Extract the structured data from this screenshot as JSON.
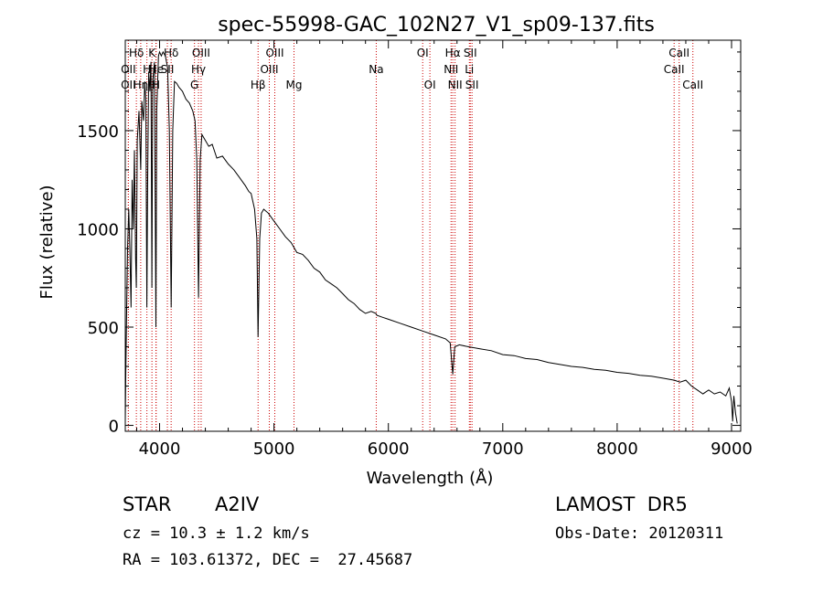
{
  "chart_data": {
    "type": "line",
    "title": "spec-55998-GAC_102N27_V1_sp09-137.fits",
    "xlabel": "Wavelength (Å)",
    "ylabel": "Flux (relative)",
    "xlim": [
      3700,
      9080
    ],
    "ylim": [
      -30,
      1960
    ],
    "xticks": [
      4000,
      5000,
      6000,
      7000,
      8000,
      9000
    ],
    "yticks": [
      0,
      500,
      1000,
      1500
    ],
    "grid": false,
    "line_color": "#000000",
    "marker_color": "#cc0000",
    "series": [
      {
        "points": [
          [
            3700,
            20
          ],
          [
            3705,
            280
          ],
          [
            3710,
            520
          ],
          [
            3720,
            900
          ],
          [
            3730,
            1100
          ],
          [
            3740,
            900
          ],
          [
            3750,
            600
          ],
          [
            3760,
            1250
          ],
          [
            3770,
            1000
          ],
          [
            3780,
            1400
          ],
          [
            3790,
            850
          ],
          [
            3797,
            700
          ],
          [
            3805,
            1450
          ],
          [
            3820,
            1600
          ],
          [
            3835,
            1300
          ],
          [
            3845,
            1650
          ],
          [
            3860,
            1550
          ],
          [
            3870,
            1750
          ],
          [
            3880,
            1650
          ],
          [
            3889,
            600
          ],
          [
            3895,
            1200
          ],
          [
            3905,
            1800
          ],
          [
            3915,
            1700
          ],
          [
            3925,
            1850
          ],
          [
            3933,
            700
          ],
          [
            3940,
            1750
          ],
          [
            3955,
            1850
          ],
          [
            3968,
            500
          ],
          [
            3975,
            1600
          ],
          [
            3990,
            1880
          ],
          [
            4000,
            1900
          ],
          [
            4015,
            1880
          ],
          [
            4030,
            1900
          ],
          [
            4050,
            1880
          ],
          [
            4070,
            1820
          ],
          [
            4085,
            1500
          ],
          [
            4101,
            600
          ],
          [
            4115,
            1500
          ],
          [
            4130,
            1750
          ],
          [
            4150,
            1740
          ],
          [
            4170,
            1720
          ],
          [
            4200,
            1700
          ],
          [
            4230,
            1660
          ],
          [
            4260,
            1640
          ],
          [
            4290,
            1600
          ],
          [
            4310,
            1550
          ],
          [
            4325,
            1350
          ],
          [
            4340,
            650
          ],
          [
            4355,
            1350
          ],
          [
            4370,
            1480
          ],
          [
            4400,
            1450
          ],
          [
            4430,
            1420
          ],
          [
            4460,
            1430
          ],
          [
            4500,
            1360
          ],
          [
            4550,
            1370
          ],
          [
            4600,
            1330
          ],
          [
            4650,
            1300
          ],
          [
            4700,
            1260
          ],
          [
            4750,
            1220
          ],
          [
            4780,
            1190
          ],
          [
            4800,
            1180
          ],
          [
            4830,
            1100
          ],
          [
            4850,
            950
          ],
          [
            4861,
            450
          ],
          [
            4875,
            950
          ],
          [
            4890,
            1080
          ],
          [
            4910,
            1100
          ],
          [
            4950,
            1080
          ],
          [
            5000,
            1040
          ],
          [
            5050,
            1000
          ],
          [
            5100,
            960
          ],
          [
            5150,
            930
          ],
          [
            5200,
            880
          ],
          [
            5250,
            870
          ],
          [
            5300,
            840
          ],
          [
            5350,
            800
          ],
          [
            5400,
            780
          ],
          [
            5450,
            740
          ],
          [
            5500,
            720
          ],
          [
            5550,
            700
          ],
          [
            5600,
            670
          ],
          [
            5650,
            640
          ],
          [
            5700,
            620
          ],
          [
            5750,
            590
          ],
          [
            5800,
            570
          ],
          [
            5850,
            580
          ],
          [
            5890,
            570
          ],
          [
            5900,
            560
          ],
          [
            5950,
            550
          ],
          [
            6000,
            540
          ],
          [
            6100,
            520
          ],
          [
            6200,
            500
          ],
          [
            6300,
            480
          ],
          [
            6400,
            460
          ],
          [
            6500,
            440
          ],
          [
            6540,
            420
          ],
          [
            6563,
            260
          ],
          [
            6580,
            400
          ],
          [
            6620,
            410
          ],
          [
            6700,
            400
          ],
          [
            6800,
            390
          ],
          [
            6900,
            380
          ],
          [
            7000,
            360
          ],
          [
            7100,
            355
          ],
          [
            7200,
            340
          ],
          [
            7300,
            335
          ],
          [
            7400,
            320
          ],
          [
            7500,
            310
          ],
          [
            7600,
            300
          ],
          [
            7700,
            295
          ],
          [
            7800,
            285
          ],
          [
            7900,
            280
          ],
          [
            8000,
            270
          ],
          [
            8100,
            265
          ],
          [
            8200,
            255
          ],
          [
            8300,
            250
          ],
          [
            8400,
            240
          ],
          [
            8500,
            230
          ],
          [
            8550,
            220
          ],
          [
            8600,
            230
          ],
          [
            8650,
            200
          ],
          [
            8700,
            180
          ],
          [
            8750,
            160
          ],
          [
            8800,
            180
          ],
          [
            8850,
            160
          ],
          [
            8900,
            170
          ],
          [
            8950,
            150
          ],
          [
            8980,
            190
          ],
          [
            9000,
            120
          ],
          [
            9010,
            20
          ],
          [
            9020,
            150
          ],
          [
            9035,
            60
          ],
          [
            9050,
            10
          ]
        ]
      }
    ],
    "line_markers": [
      {
        "label": "Hδ",
        "x": 3797,
        "row": 1
      },
      {
        "label": "K",
        "x": 3933,
        "row": 1
      },
      {
        "label": "Hδ",
        "x": 4101,
        "row": 1
      },
      {
        "label": "OII",
        "x": 3727,
        "row": 2
      },
      {
        "label": "H",
        "x": 3889,
        "row": 2
      },
      {
        "label": "He",
        "x": 3970,
        "row": 2
      },
      {
        "label": "SII",
        "x": 4068,
        "row": 2
      },
      {
        "label": "OII",
        "x": 3727,
        "row": 3
      },
      {
        "label": "Hη",
        "x": 3835,
        "row": 3
      },
      {
        "label": "H",
        "x": 3968,
        "row": 3
      },
      {
        "label": "OIII",
        "x": 4363,
        "row": 1
      },
      {
        "label": "Hγ",
        "x": 4340,
        "row": 2
      },
      {
        "label": "G",
        "x": 4305,
        "row": 3
      },
      {
        "label": "OIII",
        "x": 5007,
        "row": 1
      },
      {
        "label": "OIII",
        "x": 4959,
        "row": 2
      },
      {
        "label": "Hβ",
        "x": 4861,
        "row": 3
      },
      {
        "label": "Mg",
        "x": 5175,
        "row": 3
      },
      {
        "label": "Na",
        "x": 5894,
        "row": 2
      },
      {
        "label": "OI",
        "x": 6300,
        "row": 1
      },
      {
        "label": "OI",
        "x": 6363,
        "row": 3
      },
      {
        "label": "Hα",
        "x": 6563,
        "row": 1
      },
      {
        "label": "SII",
        "x": 6716,
        "row": 1
      },
      {
        "label": "NII",
        "x": 6548,
        "row": 2
      },
      {
        "label": "Li",
        "x": 6708,
        "row": 2
      },
      {
        "label": "NII",
        "x": 6583,
        "row": 3
      },
      {
        "label": "SII",
        "x": 6731,
        "row": 3
      },
      {
        "label": "CaII",
        "x": 8542,
        "row": 1
      },
      {
        "label": "CaII",
        "x": 8498,
        "row": 2
      },
      {
        "label": "CaII",
        "x": 8662,
        "row": 3
      }
    ]
  },
  "info": {
    "class": "STAR",
    "subclass": "A2IV",
    "survey": "LAMOST  DR5",
    "cz": "cz = 10.3 ± 1.2 km/s",
    "obs_date": "Obs-Date: 20120311",
    "coords": "RA = 103.61372, DEC =  27.45687"
  }
}
